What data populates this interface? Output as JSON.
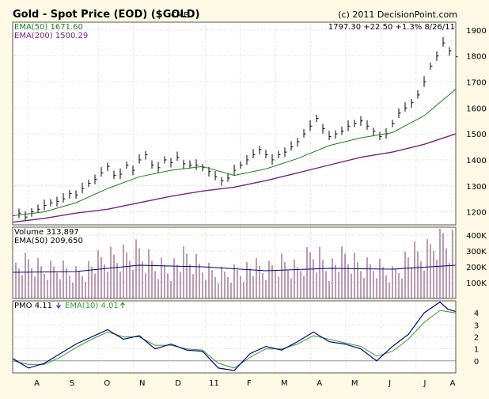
{
  "header": {
    "title": "Gold - Spot Price (EOD) ($GOLD)",
    "exchange": "CME",
    "copyright": "(c) 2011 DecisionPoint.com",
    "quote": "1797.30  +22.50  +1.3%  8/26/11"
  },
  "colors": {
    "background": "#fdf9e5",
    "frame": "#b0b0b0",
    "grid": "#c8c8c8",
    "price": "#000000",
    "ema50": "#1f7a1f",
    "ema200": "#7a1f7a",
    "volume_bar": "#7a3a6a",
    "volume_ema": "#000080",
    "pmo": "#000080",
    "pmo_ema": "#2f9e2f",
    "down_arrow": "#1f3aa0",
    "up_arrow": "#2f9e2f"
  },
  "chart_data": [
    {
      "type": "line",
      "name": "price_panel",
      "ylim": [
        1150,
        1930
      ],
      "yticks": [
        1200,
        1300,
        1400,
        1500,
        1600,
        1700,
        1800,
        1900
      ],
      "ytick_labels": [
        "1200",
        "1300",
        "1400",
        "1500",
        "1600",
        "1700",
        "1800",
        "1900"
      ],
      "x_months": [
        "A",
        "S",
        "O",
        "N",
        "D",
        "11",
        "F",
        "M",
        "A",
        "M",
        "J",
        "J",
        "A"
      ],
      "legend": [
        {
          "label": "EMA(50)",
          "value": "1671.60",
          "color": "#1f7a1f"
        },
        {
          "label": "EMA(200)",
          "value": "1500.29",
          "color": "#7a1f7a"
        }
      ],
      "series": [
        {
          "name": "Price",
          "x": [
            0,
            4,
            8,
            12,
            16,
            20,
            24,
            28,
            32,
            36,
            40,
            44,
            48,
            52,
            56,
            60,
            64,
            68,
            72,
            76,
            80,
            84,
            88,
            92,
            96,
            100,
            104,
            108,
            112,
            116,
            120,
            124,
            128,
            132,
            136,
            140,
            144,
            148,
            152,
            156,
            160,
            164,
            168,
            172,
            176,
            180,
            184,
            188,
            192,
            196,
            200,
            204,
            208,
            212,
            216,
            220,
            224,
            228,
            232,
            236,
            240,
            244,
            248,
            252,
            256,
            260,
            264,
            268,
            272,
            276,
            280
          ],
          "values": [
            1185,
            1195,
            1180,
            1200,
            1210,
            1225,
            1235,
            1240,
            1250,
            1270,
            1265,
            1290,
            1310,
            1325,
            1350,
            1375,
            1340,
            1345,
            1380,
            1360,
            1400,
            1420,
            1380,
            1370,
            1400,
            1390,
            1410,
            1385,
            1380,
            1380,
            1370,
            1355,
            1335,
            1320,
            1330,
            1360,
            1380,
            1400,
            1420,
            1440,
            1420,
            1400,
            1420,
            1430,
            1450,
            1470,
            1500,
            1530,
            1560,
            1520,
            1490,
            1500,
            1510,
            1530,
            1540,
            1550,
            1530,
            1510,
            1490,
            1500,
            1540,
            1580,
            1600,
            1620,
            1650,
            1700,
            1760,
            1800,
            1850,
            1820,
            1797
          ]
        },
        {
          "name": "EMA(50)",
          "x": [
            0,
            20,
            40,
            60,
            80,
            100,
            120,
            140,
            160,
            180,
            200,
            220,
            240,
            260,
            280
          ],
          "values": [
            1185,
            1200,
            1235,
            1290,
            1335,
            1360,
            1375,
            1340,
            1365,
            1405,
            1455,
            1485,
            1505,
            1570,
            1672
          ]
        },
        {
          "name": "EMA(200)",
          "x": [
            0,
            20,
            40,
            60,
            80,
            100,
            120,
            140,
            160,
            180,
            200,
            220,
            240,
            260,
            280
          ],
          "values": [
            1160,
            1175,
            1195,
            1210,
            1235,
            1260,
            1280,
            1295,
            1320,
            1350,
            1380,
            1410,
            1430,
            1460,
            1500
          ]
        }
      ]
    },
    {
      "type": "bar",
      "name": "volume_panel",
      "ylim": [
        0,
        450000
      ],
      "yticks": [
        100000,
        200000,
        300000,
        400000
      ],
      "ytick_labels": [
        "100K",
        "200K",
        "300K",
        "400K"
      ],
      "legend": [
        {
          "label": "Volume",
          "value": "313,897"
        },
        {
          "label": "EMA(50)",
          "value": "209,650"
        }
      ],
      "series": [
        {
          "name": "Volume",
          "x": [
            0,
            10,
            20,
            30,
            40,
            50,
            60,
            70,
            80,
            90,
            100,
            110,
            120,
            130,
            140,
            150,
            160,
            170,
            180,
            190,
            200,
            210,
            220,
            230,
            240,
            250,
            260,
            270,
            280
          ],
          "values": [
            180000,
            210000,
            170000,
            190000,
            160000,
            200000,
            230000,
            250000,
            290000,
            210000,
            200000,
            240000,
            180000,
            150000,
            170000,
            190000,
            160000,
            210000,
            180000,
            300000,
            200000,
            240000,
            190000,
            200000,
            160000,
            260000,
            240000,
            380000,
            314000
          ]
        },
        {
          "name": "EMA(50)",
          "x": [
            0,
            40,
            80,
            120,
            160,
            200,
            240,
            280
          ],
          "values": [
            165000,
            170000,
            210000,
            200000,
            175000,
            190000,
            185000,
            210000
          ]
        }
      ]
    },
    {
      "type": "line",
      "name": "pmo_panel",
      "ylim": [
        -1,
        5
      ],
      "yticks": [
        0,
        1,
        2,
        3,
        4
      ],
      "ytick_labels": [
        "0",
        "1",
        "2",
        "3",
        "4"
      ],
      "legend": [
        {
          "label": "PMO",
          "value": "4.11"
        },
        {
          "label": "EMA(10)",
          "value": "4.01"
        }
      ],
      "series": [
        {
          "name": "PMO",
          "x": [
            0,
            10,
            20,
            30,
            40,
            50,
            60,
            70,
            80,
            90,
            100,
            110,
            120,
            130,
            140,
            150,
            160,
            170,
            180,
            190,
            200,
            210,
            220,
            230,
            240,
            250,
            260,
            270,
            275,
            280
          ],
          "values": [
            0.2,
            -0.6,
            -0.2,
            0.6,
            1.4,
            2.0,
            2.6,
            1.8,
            2.1,
            1.0,
            1.4,
            0.9,
            0.8,
            -0.6,
            -0.8,
            0.6,
            1.2,
            0.9,
            1.6,
            2.4,
            1.6,
            1.4,
            1.0,
            0.0,
            1.2,
            2.2,
            4.0,
            4.9,
            4.3,
            4.1
          ]
        },
        {
          "name": "EMA(10)",
          "x": [
            0,
            10,
            20,
            30,
            40,
            50,
            60,
            70,
            80,
            90,
            100,
            110,
            120,
            130,
            140,
            150,
            160,
            170,
            180,
            190,
            200,
            210,
            220,
            230,
            240,
            250,
            260,
            270,
            280
          ],
          "values": [
            0.0,
            -0.3,
            -0.3,
            0.3,
            1.1,
            1.8,
            2.4,
            2.0,
            2.0,
            1.3,
            1.3,
            1.0,
            0.9,
            -0.2,
            -0.6,
            0.3,
            1.0,
            1.0,
            1.4,
            2.1,
            1.8,
            1.5,
            1.2,
            0.4,
            0.8,
            1.8,
            3.2,
            4.2,
            4.0
          ]
        }
      ]
    }
  ]
}
